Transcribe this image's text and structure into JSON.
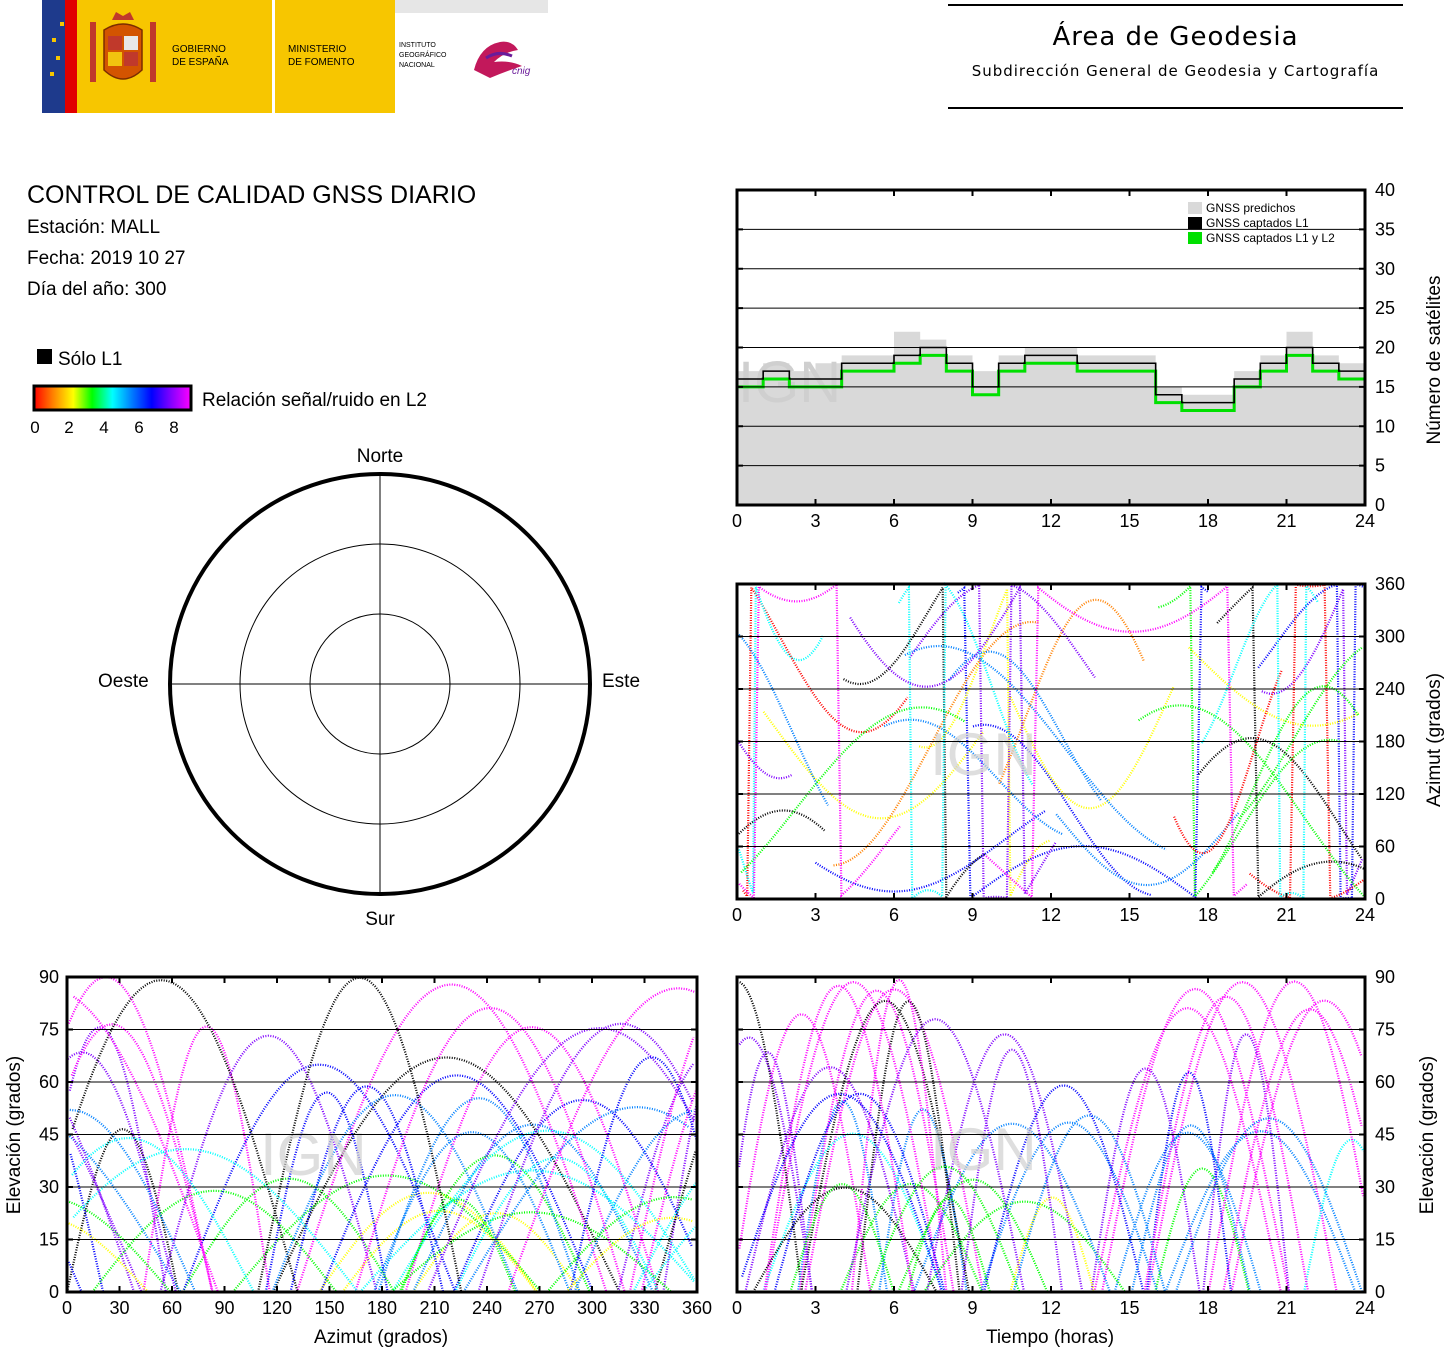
{
  "header": {
    "gobierno": [
      "GOBIERNO",
      "DE ESPAÑA"
    ],
    "ministerio": [
      "MINISTERIO",
      "DE FOMENTO"
    ],
    "instituto": [
      "INSTITUTO",
      "GEOGRÁFICO",
      "NACIONAL"
    ],
    "cnig": "cnig",
    "area_title": "Área de Geodesia",
    "area_subtitle": "Subdirección General de Geodesia y Cartografía"
  },
  "report": {
    "title": "CONTROL DE CALIDAD GNSS DIARIO",
    "station": "Estación: MALL",
    "date": "Fecha: 2019 10 27",
    "doy": "Día del año: 300"
  },
  "legend": {
    "l1_only": "Sólo L1",
    "snr_label": "Relación señal/ruido en L2",
    "snr_ticks": [
      "0",
      "2",
      "4",
      "6",
      "8"
    ]
  },
  "watermark": "IGN",
  "colors": {
    "predicted": "#d9d9d9",
    "l1": "#000000",
    "l1l2": "#00e000",
    "gradient": [
      "#ff0000",
      "#ff8000",
      "#ffff00",
      "#00ff00",
      "#00ffff",
      "#0080ff",
      "#0000ff",
      "#8000ff",
      "#ff00ff"
    ]
  },
  "chart_data": [
    {
      "type": "polar-skyplot",
      "labels": {
        "north": "Norte",
        "south": "Sur",
        "east": "Este",
        "west": "Oeste"
      },
      "elevation_rings": [
        "30",
        "60"
      ]
    },
    {
      "type": "area",
      "ylabel": "Número de satélites",
      "x_ticks": [
        "0",
        "3",
        "6",
        "9",
        "12",
        "15",
        "18",
        "21",
        "24"
      ],
      "y_ticks": [
        "0",
        "5",
        "10",
        "15",
        "20",
        "25",
        "30",
        "35",
        "40"
      ],
      "xlim": [
        0,
        24
      ],
      "ylim": [
        0,
        40
      ],
      "legend": [
        "GNSS predichos",
        "GNSS captados L1",
        "GNSS captados L1 y L2"
      ],
      "x": [
        0,
        1,
        2,
        3,
        4,
        5,
        6,
        7,
        8,
        9,
        10,
        11,
        12,
        13,
        14,
        15,
        16,
        17,
        18,
        19,
        20,
        21,
        22,
        23,
        24
      ],
      "series": [
        {
          "name": "GNSS predichos",
          "values": [
            17,
            18,
            17,
            18,
            19,
            19,
            22,
            21,
            19,
            17,
            19,
            20,
            20,
            19,
            19,
            19,
            15,
            14,
            14,
            17,
            19,
            22,
            19,
            18,
            18
          ]
        },
        {
          "name": "GNSS captados L1",
          "values": [
            16,
            17,
            16,
            16,
            18,
            18,
            19,
            20,
            18,
            15,
            18,
            19,
            19,
            18,
            18,
            18,
            14,
            13,
            13,
            16,
            18,
            20,
            18,
            17,
            17
          ]
        },
        {
          "name": "GNSS captados L1 y L2",
          "values": [
            15,
            16,
            15,
            15,
            17,
            17,
            18,
            19,
            17,
            14,
            17,
            18,
            18,
            17,
            17,
            17,
            13,
            12,
            12,
            15,
            17,
            19,
            17,
            16,
            16
          ]
        }
      ]
    },
    {
      "type": "scatter",
      "ylabel": "Azimut (grados)",
      "x_ticks": [
        "0",
        "3",
        "6",
        "9",
        "12",
        "15",
        "18",
        "21",
        "24"
      ],
      "y_ticks": [
        "0",
        "60",
        "120",
        "180",
        "240",
        "300",
        "360"
      ],
      "xlim": [
        0,
        24
      ],
      "ylim": [
        0,
        360
      ]
    },
    {
      "type": "scatter",
      "xlabel": "Azimut (grados)",
      "ylabel": "Elevación (grados)",
      "x_ticks": [
        "0",
        "30",
        "60",
        "90",
        "120",
        "150",
        "180",
        "210",
        "240",
        "270",
        "300",
        "330",
        "360"
      ],
      "y_ticks": [
        "0",
        "15",
        "30",
        "45",
        "60",
        "75",
        "90"
      ],
      "xlim": [
        0,
        360
      ],
      "ylim": [
        0,
        90
      ]
    },
    {
      "type": "scatter",
      "xlabel": "Tiempo (horas)",
      "ylabel": "Elevación (grados)",
      "x_ticks": [
        "0",
        "3",
        "6",
        "9",
        "12",
        "15",
        "18",
        "21",
        "24"
      ],
      "y_ticks": [
        "0",
        "15",
        "30",
        "45",
        "60",
        "75",
        "90"
      ],
      "xlim": [
        0,
        24
      ],
      "ylim": [
        0,
        90
      ]
    }
  ]
}
